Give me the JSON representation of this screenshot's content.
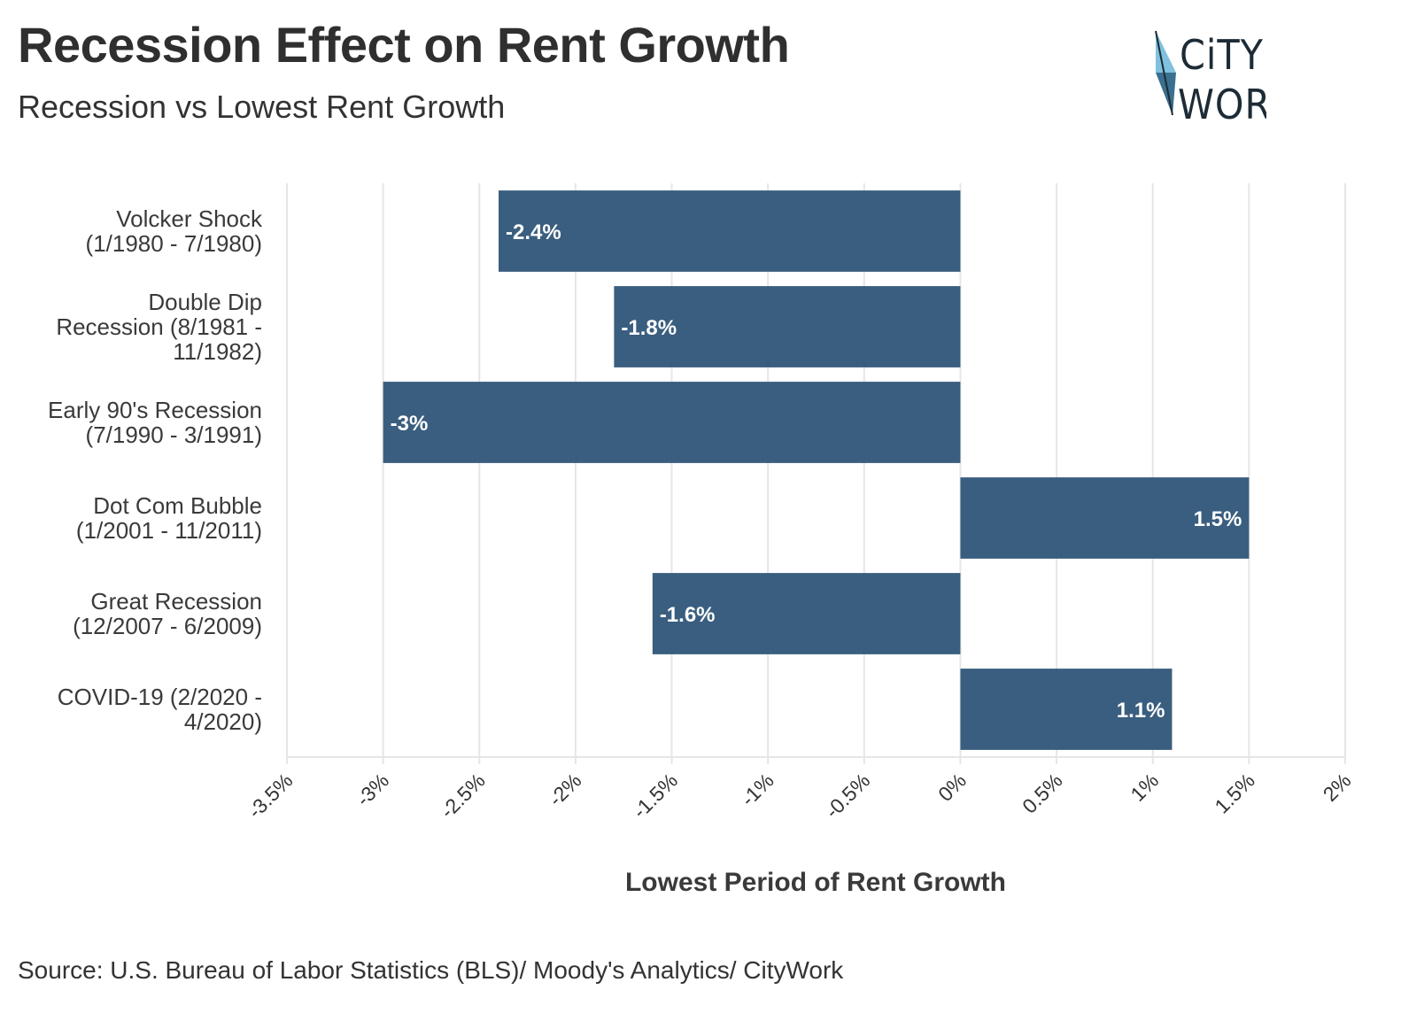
{
  "header": {
    "title": "Recession Effect on Rent Growth",
    "subtitle": "Recession vs Lowest Rent Growth"
  },
  "logo": {
    "line1": "CiTY",
    "line2": "WORK",
    "colors": {
      "light": "#7fc1de",
      "dark": "#3a6f8f",
      "text": "#1d2b36"
    }
  },
  "footer": {
    "source": "Source: U.S. Bureau of Labor Statistics (BLS)/ Moody's Analytics/ CityWork"
  },
  "colors": {
    "bar": "#2b5275",
    "grid": "#e6e6e6",
    "background": "#ffffff"
  },
  "chart_data": {
    "type": "bar",
    "orientation": "horizontal",
    "title": "Recession Effect on Rent Growth",
    "subtitle": "Recession vs Lowest Rent Growth",
    "xlabel": "Lowest Period of Rent Growth",
    "ylabel": "",
    "categories": [
      [
        "Volcker Shock",
        "(1/1980 - 7/1980)"
      ],
      [
        "Double Dip",
        "Recession (8/1981 -",
        "11/1982)"
      ],
      [
        "Early 90's Recession",
        "(7/1990 - 3/1991)"
      ],
      [
        "Dot Com Bubble",
        "(1/2001 - 11/2011)"
      ],
      [
        "Great Recession",
        "(12/2007 - 6/2009)"
      ],
      [
        "COVID-19 (2/2020 -",
        "4/2020)"
      ]
    ],
    "values": [
      -2.4,
      -1.8,
      -3.0,
      1.5,
      -1.6,
      1.1
    ],
    "data_labels": [
      "-2.4%",
      "-1.8%",
      "-3%",
      "1.5%",
      "-1.6%",
      "1.1%"
    ],
    "xlim": [
      -3.5,
      2
    ],
    "x_ticks": [
      -3.5,
      -3,
      -2.5,
      -2,
      -1.5,
      -1,
      -0.5,
      0,
      0.5,
      1,
      1.5,
      2
    ],
    "x_tick_labels": [
      "-3.5%",
      "-3%",
      "-2.5%",
      "-2%",
      "-1.5%",
      "-1%",
      "-0.5%",
      "0%",
      "0.5%",
      "1%",
      "1.5%",
      "2%"
    ],
    "grid": true,
    "legend": "none"
  }
}
